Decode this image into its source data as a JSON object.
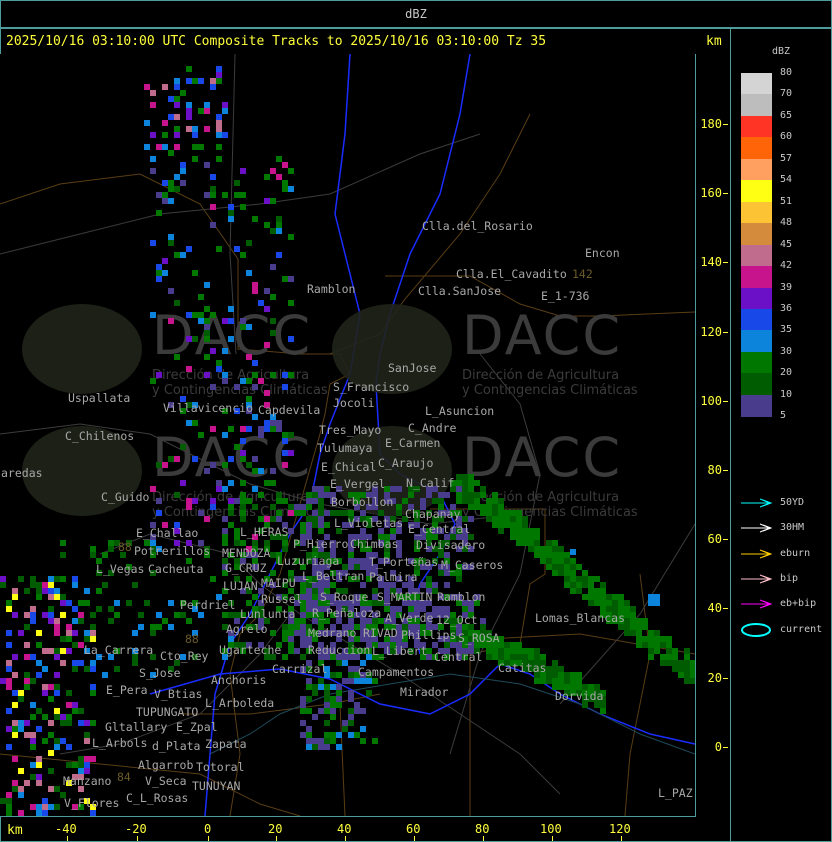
{
  "header": {
    "title": "dBZ"
  },
  "plot": {
    "title": "2025/10/16 03:10:00 UTC Composite Tracks to 2025/10/16 03:10:00 Tz 35",
    "y_unit": "km",
    "x_unit": "km",
    "x_ticks": [
      "-40",
      "-20",
      "0",
      "20",
      "40",
      "60",
      "80",
      "100",
      "120"
    ],
    "y_ticks": [
      "180",
      "160",
      "140",
      "120",
      "100",
      "80",
      "60",
      "40",
      "20",
      "0"
    ]
  },
  "watermark": {
    "brand": "DACC",
    "line1": "Dirección de Agricultura",
    "line2": "y Contingencias Climáticas"
  },
  "places": [
    "Clla.del_Rosario",
    "Encon",
    "E_1-736",
    "Ramblon",
    "Clla.SanJose",
    "Clla.El_Cavadito",
    "SanJose",
    "Villavicencio",
    "Capdevila",
    "S_Francisco",
    "Jocoli",
    "L_Asuncion",
    "Uspallata",
    "Tres_Mayo",
    "C_Andre",
    "E_Carmen",
    "Tulumaya",
    "C_Chilenos",
    "C_Araujo",
    "N_Calif",
    "E_Chical",
    "E_Vergel",
    "aredas",
    "Borbollon",
    "L_Violetas",
    "E_Central",
    "Divisadero",
    "C_Guido",
    "L_HERAS",
    "P_Hierro",
    "E_Challao",
    "MENDOZA",
    "T_Porteñas",
    "G_CRUZ",
    "Luzuriaga",
    "Chapanay",
    "L_Beltran",
    "Potrerillos",
    "MAIPU",
    "Chimbas",
    "M_Caseros",
    "L_Vegas",
    "Cacheuta",
    "Russel",
    "S_Roque",
    "LUJAN",
    "Lunlunta",
    "Palmira",
    "Perdriel",
    "S_MARTIN",
    "A_Verde",
    "Ramblon",
    "Agrelo",
    "R_Peñaloza",
    "Medrano",
    "RIVAD",
    "Phillips",
    "12_Oct",
    "Reduccion",
    "L_Libert",
    "S_ROSA",
    "Central",
    "Campamentos",
    "Lomas_Blancas",
    "Ugarteche",
    "La_Carrera",
    "Cto_Rey",
    "S_Jose",
    "Carrizal",
    "Anchoris",
    "V_Btias",
    "E_Pera",
    "TUPUNGATO",
    "L_Arboleda",
    "Mirador",
    "Catitas",
    "Dorvida",
    "Gltallary",
    "E_Zpal",
    "d_Plata",
    "L_Arbols",
    "Zapata",
    "Algarrob",
    "V_Seca",
    "Totoral",
    "TUNUYAN",
    "Manzano",
    "C_L_Rosas",
    "V_Flores",
    "L_PAZ",
    "88",
    "88",
    "84",
    "142"
  ],
  "legend": {
    "title": "dBZ",
    "scale": [
      {
        "label": "80",
        "color": "#d4d4d4"
      },
      {
        "label": "70",
        "color": "#bdbdbd"
      },
      {
        "label": "65",
        "color": "#ff3424"
      },
      {
        "label": "60",
        "color": "#ff6408"
      },
      {
        "label": "57",
        "color": "#ffa060"
      },
      {
        "label": "54",
        "color": "#ffff14"
      },
      {
        "label": "51",
        "color": "#fcc434"
      },
      {
        "label": "48",
        "color": "#d48c3c"
      },
      {
        "label": "45",
        "color": "#c06c8c"
      },
      {
        "label": "42",
        "color": "#c8148c"
      },
      {
        "label": "39",
        "color": "#6c10c8"
      },
      {
        "label": "36",
        "color": "#1848e8"
      },
      {
        "label": "35",
        "color": "#0c84dc"
      },
      {
        "label": "30",
        "color": "#007800"
      },
      {
        "label": "20",
        "color": "#005c00"
      },
      {
        "label": "10",
        "color": "#4a3c8c"
      },
      {
        "label": "5"
      }
    ],
    "tracks": [
      {
        "label": "50YD",
        "color": "#00ffff"
      },
      {
        "label": "30HM",
        "color": "#ffffff"
      },
      {
        "label": "eburn",
        "color": "#ffcc00"
      },
      {
        "label": "bip",
        "color": "#ffc0cb"
      },
      {
        "label": "eb+bip",
        "color": "#ff00ff"
      },
      {
        "label": "current",
        "color": "#00ffff"
      }
    ]
  }
}
